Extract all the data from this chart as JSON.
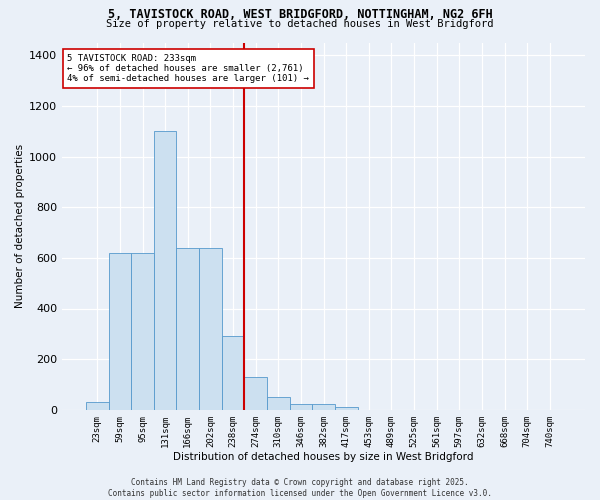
{
  "title_line1": "5, TAVISTOCK ROAD, WEST BRIDGFORD, NOTTINGHAM, NG2 6FH",
  "title_line2": "Size of property relative to detached houses in West Bridgford",
  "xlabel": "Distribution of detached houses by size in West Bridgford",
  "ylabel": "Number of detached properties",
  "bin_labels": [
    "23sqm",
    "59sqm",
    "95sqm",
    "131sqm",
    "166sqm",
    "202sqm",
    "238sqm",
    "274sqm",
    "310sqm",
    "346sqm",
    "382sqm",
    "417sqm",
    "453sqm",
    "489sqm",
    "525sqm",
    "561sqm",
    "597sqm",
    "632sqm",
    "668sqm",
    "704sqm",
    "740sqm"
  ],
  "bar_values": [
    30,
    620,
    620,
    1100,
    640,
    640,
    290,
    130,
    50,
    25,
    25,
    10,
    0,
    0,
    0,
    0,
    0,
    0,
    0,
    0,
    0
  ],
  "bar_color": "#cce0f0",
  "bar_edge_color": "#5599cc",
  "vline_x": 6.5,
  "vline_color": "#cc0000",
  "annotation_text": "5 TAVISTOCK ROAD: 233sqm\n← 96% of detached houses are smaller (2,761)\n4% of semi-detached houses are larger (101) →",
  "annotation_box_color": "#ffffff",
  "annotation_box_edge": "#cc0000",
  "ylim": [
    0,
    1450
  ],
  "yticks": [
    0,
    200,
    400,
    600,
    800,
    1000,
    1200,
    1400
  ],
  "bg_color": "#eaf0f8",
  "footnote": "Contains HM Land Registry data © Crown copyright and database right 2025.\nContains public sector information licensed under the Open Government Licence v3.0."
}
